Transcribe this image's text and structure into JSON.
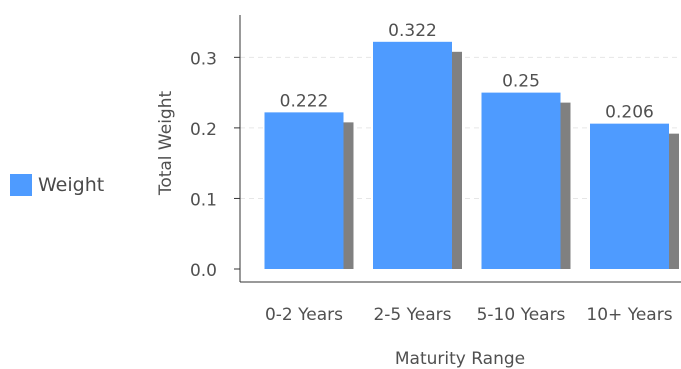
{
  "chart_data": {
    "type": "bar",
    "title": "",
    "xlabel": "Maturity Range",
    "ylabel": "Total Weight",
    "categories": [
      "0-2 Years",
      "2-5 Years",
      "5-10 Years",
      "10+ Years"
    ],
    "series": [
      {
        "name": "Weight",
        "values": [
          0.222,
          0.322,
          0.25,
          0.206
        ]
      }
    ],
    "value_labels": [
      "0.222",
      "0.322",
      "0.25",
      "0.206"
    ],
    "ylim": [
      0,
      0.36
    ],
    "yticks": [
      0.0,
      0.1,
      0.2,
      0.3
    ],
    "ytick_labels": [
      "0.0",
      "0.1",
      "0.2",
      "0.3"
    ],
    "grid": true,
    "legend_position": "left",
    "colors": {
      "bar": "#4e9bff",
      "shadow": "#808080",
      "grid": "#e6e6e6",
      "axis": "#333333"
    }
  },
  "legend": {
    "label": "Weight"
  }
}
